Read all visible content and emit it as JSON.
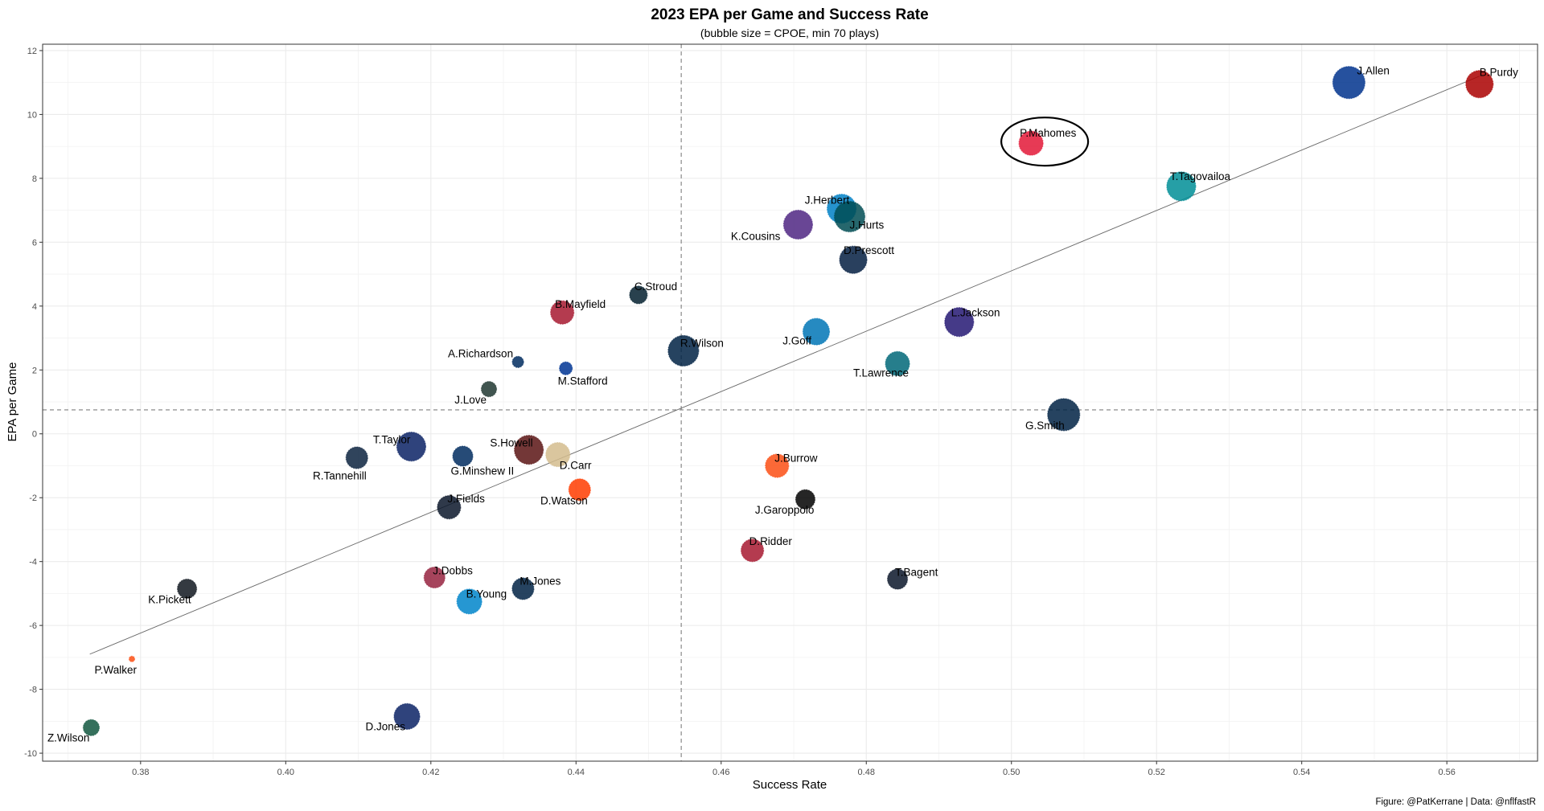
{
  "chart_data": {
    "type": "scatter",
    "title": "2023 EPA per Game and Success Rate",
    "subtitle": "(bubble size = CPOE, min 70 plays)",
    "xlabel": "Success Rate",
    "ylabel": "EPA per Game",
    "caption": "Figure: @PatKerrane | Data: @nflfastR",
    "xlim": [
      0.3665,
      0.5725
    ],
    "ylim": [
      -10.25,
      12.2
    ],
    "x_ticks": [
      "0.38",
      "0.40",
      "0.42",
      "0.44",
      "0.46",
      "0.48",
      "0.50",
      "0.52",
      "0.54",
      "0.56"
    ],
    "y_ticks": [
      "-10",
      "-8",
      "-6",
      "-4",
      "-2",
      "0",
      "2",
      "4",
      "6",
      "8",
      "10",
      "12"
    ],
    "grid": true,
    "reference_lines": {
      "x_mean": 0.4545,
      "y_mean": 0.75
    },
    "trend_line": {
      "x": [
        0.373,
        0.5645
      ],
      "y": [
        -6.9,
        11.2
      ]
    },
    "highlight": "P.Mahomes",
    "points": [
      {
        "name": "J.Allen",
        "x": 0.5465,
        "y": 11.0,
        "size": 40,
        "color": "#00338D"
      },
      {
        "name": "B.Purdy",
        "x": 0.5645,
        "y": 10.95,
        "size": 34,
        "color": "#AA0000"
      },
      {
        "name": "P.Mahomes",
        "x": 0.5027,
        "y": 9.1,
        "size": 30,
        "color": "#E31837"
      },
      {
        "name": "T.Tagovailoa",
        "x": 0.5234,
        "y": 7.75,
        "size": 36,
        "color": "#008E97"
      },
      {
        "name": "J.Herbert",
        "x": 0.4766,
        "y": 7.05,
        "size": 36,
        "color": "#0080C6"
      },
      {
        "name": "J.Hurts",
        "x": 0.4777,
        "y": 6.8,
        "size": 38,
        "color": "#004C54"
      },
      {
        "name": "K.Cousins",
        "x": 0.4706,
        "y": 6.55,
        "size": 36,
        "color": "#4F2683"
      },
      {
        "name": "D.Prescott",
        "x": 0.4782,
        "y": 5.45,
        "size": 34,
        "color": "#041E42"
      },
      {
        "name": "C.Stroud",
        "x": 0.4486,
        "y": 4.35,
        "size": 22,
        "color": "#03202F"
      },
      {
        "name": "B.Mayfield",
        "x": 0.4381,
        "y": 3.8,
        "size": 29,
        "color": "#A71930"
      },
      {
        "name": "L.Jackson",
        "x": 0.4928,
        "y": 3.5,
        "size": 36,
        "color": "#241773"
      },
      {
        "name": "J.Goff",
        "x": 0.4731,
        "y": 3.2,
        "size": 33,
        "color": "#0076B6"
      },
      {
        "name": "R.Wilson",
        "x": 0.4548,
        "y": 2.6,
        "size": 38,
        "color": "#002244"
      },
      {
        "name": "A.Richardson",
        "x": 0.432,
        "y": 2.25,
        "size": 14,
        "color": "#002C5F"
      },
      {
        "name": "T.Lawrence",
        "x": 0.4843,
        "y": 2.2,
        "size": 30,
        "color": "#006778"
      },
      {
        "name": "M.Stafford",
        "x": 0.4386,
        "y": 2.05,
        "size": 16,
        "color": "#003594"
      },
      {
        "name": "J.Love",
        "x": 0.428,
        "y": 1.4,
        "size": 19,
        "color": "#203731"
      },
      {
        "name": "G.Smith",
        "x": 0.5072,
        "y": 0.6,
        "size": 40,
        "color": "#002244"
      },
      {
        "name": "T.Taylor",
        "x": 0.4173,
        "y": -0.4,
        "size": 36,
        "color": "#0B2265"
      },
      {
        "name": "S.Howell",
        "x": 0.4335,
        "y": -0.5,
        "size": 36,
        "color": "#5A1414"
      },
      {
        "name": "D.Carr",
        "x": 0.4375,
        "y": -0.65,
        "size": 30,
        "color": "#D3BC8D"
      },
      {
        "name": "R.Tannehill",
        "x": 0.4098,
        "y": -0.75,
        "size": 27,
        "color": "#0C2340"
      },
      {
        "name": "G.Minshew II",
        "x": 0.4244,
        "y": -0.7,
        "size": 25,
        "color": "#002C5F"
      },
      {
        "name": "J.Burrow",
        "x": 0.4677,
        "y": -1.0,
        "size": 29,
        "color": "#FB4F14"
      },
      {
        "name": "D.Watson",
        "x": 0.4405,
        "y": -1.75,
        "size": 27,
        "color": "#FF3C00"
      },
      {
        "name": "J.Garoppolo",
        "x": 0.4716,
        "y": -2.05,
        "size": 24,
        "color": "#000000"
      },
      {
        "name": "J.Fields",
        "x": 0.4225,
        "y": -2.3,
        "size": 29,
        "color": "#0B162A"
      },
      {
        "name": "D.Ridder",
        "x": 0.4643,
        "y": -3.65,
        "size": 28,
        "color": "#A71930"
      },
      {
        "name": "J.Dobbs",
        "x": 0.4205,
        "y": -4.5,
        "size": 26,
        "color": "#97233F"
      },
      {
        "name": "T.Bagent",
        "x": 0.4843,
        "y": -4.55,
        "size": 25,
        "color": "#0B162A"
      },
      {
        "name": "K.Pickett",
        "x": 0.3864,
        "y": -4.85,
        "size": 24,
        "color": "#101820"
      },
      {
        "name": "M.Jones",
        "x": 0.4327,
        "y": -4.85,
        "size": 27,
        "color": "#002244"
      },
      {
        "name": "B.Young",
        "x": 0.4253,
        "y": -5.25,
        "size": 31,
        "color": "#0085CA"
      },
      {
        "name": "P.Walker",
        "x": 0.3788,
        "y": -7.05,
        "size": 7,
        "color": "#FB4F14"
      },
      {
        "name": "Z.Wilson",
        "x": 0.3732,
        "y": -9.2,
        "size": 20,
        "color": "#125740"
      },
      {
        "name": "D.Jones",
        "x": 0.4167,
        "y": -8.85,
        "size": 32,
        "color": "#0B2265"
      }
    ]
  }
}
